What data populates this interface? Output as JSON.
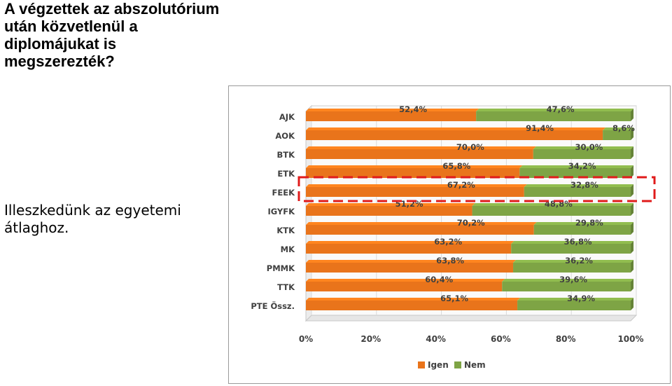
{
  "title_lines": [
    "A végzettek az abszolutórium",
    "után közvetlenül a",
    "diplomájukat is",
    "megszerezték?"
  ],
  "note_lines": [
    "Illeszkedünk az egyetemi",
    "átlaghoz."
  ],
  "colors": {
    "igen": "#E9741B",
    "nem": "#7EA445",
    "highlight": "#E01B1B"
  },
  "chart_data": {
    "type": "bar",
    "orientation": "horizontal",
    "stacked": "percent",
    "categories": [
      "AJK",
      "AOK",
      "BTK",
      "ETK",
      "FEEK",
      "IGYFK",
      "KTK",
      "MK",
      "PMMK",
      "TTK",
      "PTE Össz."
    ],
    "series": [
      {
        "name": "Igen",
        "values": [
          52.4,
          91.4,
          70.0,
          65.8,
          67.2,
          51.2,
          70.2,
          63.2,
          63.8,
          60.4,
          65.1
        ],
        "labels": [
          "52,4%",
          "91,4%",
          "70,0%",
          "65,8%",
          "67,2%",
          "51,2%",
          "70,2%",
          "63,2%",
          "63,8%",
          "60,4%",
          "65,1%"
        ]
      },
      {
        "name": "Nem",
        "values": [
          47.6,
          8.6,
          30.0,
          34.2,
          32.8,
          48.8,
          29.8,
          36.8,
          36.2,
          39.6,
          34.9
        ],
        "labels": [
          "47,6%",
          "8,6%",
          "30,0%",
          "34,2%",
          "32,8%",
          "48,8%",
          "29,8%",
          "36,8%",
          "36,2%",
          "39,6%",
          "34,9%"
        ]
      }
    ],
    "xlim": [
      0,
      100
    ],
    "xticks": [
      "0%",
      "20%",
      "40%",
      "60%",
      "80%",
      "100%"
    ],
    "grid": true,
    "legend": "bottom",
    "highlighted_category": "FEEK"
  }
}
